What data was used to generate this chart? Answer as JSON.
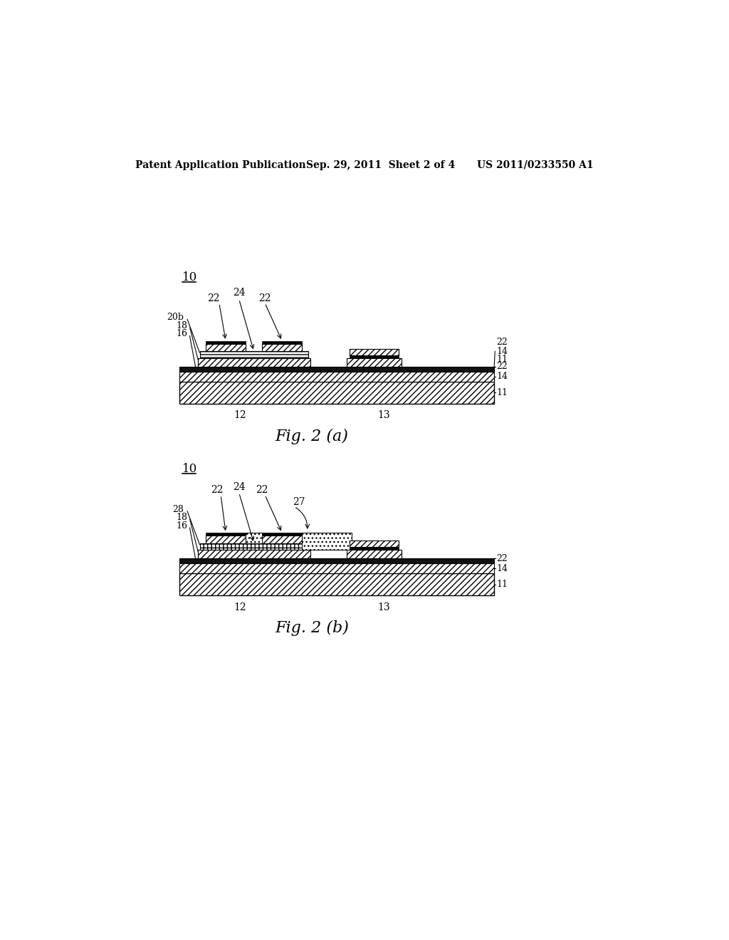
{
  "bg_color": "#ffffff",
  "header_text": "Patent Application Publication",
  "header_date": "Sep. 29, 2011  Sheet 2 of 4",
  "header_patent": "US 2011/0233550 A1",
  "fig_a_label": "Fig. 2 (a)",
  "fig_b_label": "Fig. 2 (b)",
  "label_10": "10",
  "label_12": "12",
  "label_13": "13",
  "label_22": "22",
  "label_24": "24",
  "label_20b": "20b",
  "label_18": "18",
  "label_16": "16",
  "label_14": "14",
  "label_11": "11",
  "label_28": "28",
  "label_27": "27"
}
